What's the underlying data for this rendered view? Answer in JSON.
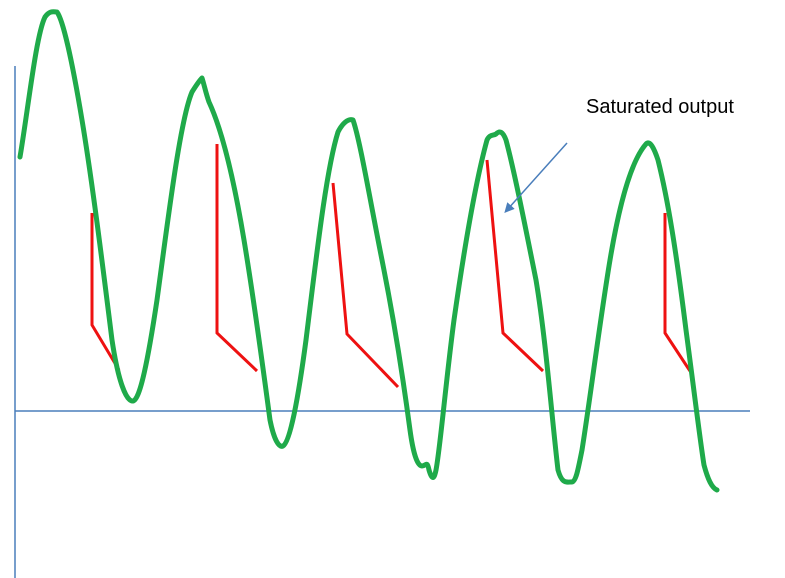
{
  "annotation": {
    "label": "Saturated output"
  },
  "colors": {
    "axis": "#4a7ebb",
    "signal": "#1faa4a",
    "saturation": "#ee1111",
    "arrow": "#4a7ebb",
    "label_text": "#000000"
  }
}
